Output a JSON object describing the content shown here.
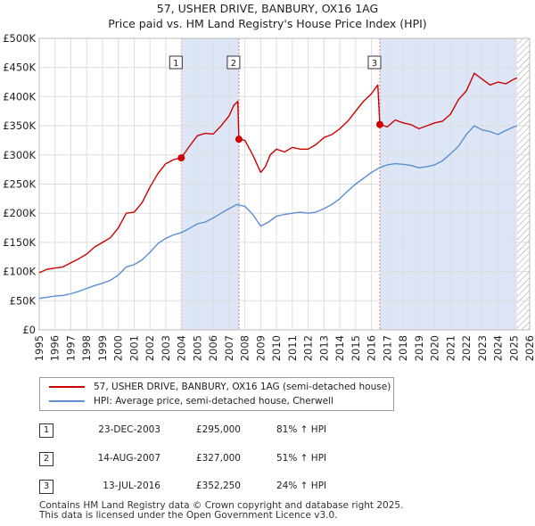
{
  "chart_data": {
    "type": "line",
    "title": "57, USHER DRIVE, BANBURY, OX16 1AG",
    "subtitle": "Price paid vs. HM Land Registry's House Price Index (HPI)",
    "xlim": [
      1995,
      2026
    ],
    "ylim": [
      0,
      500000
    ],
    "x_ticks": [
      "1995",
      "1996",
      "1997",
      "1998",
      "1999",
      "2000",
      "2001",
      "2002",
      "2003",
      "2004",
      "2005",
      "2006",
      "2007",
      "2008",
      "2009",
      "2010",
      "2011",
      "2012",
      "2013",
      "2014",
      "2015",
      "2016",
      "2017",
      "2018",
      "2019",
      "2020",
      "2021",
      "2022",
      "2023",
      "2024",
      "2025",
      "2026"
    ],
    "y_ticks": [
      {
        "value": 0,
        "label": "£0"
      },
      {
        "value": 50000,
        "label": "£50K"
      },
      {
        "value": 100000,
        "label": "£100K"
      },
      {
        "value": 150000,
        "label": "£150K"
      },
      {
        "value": 200000,
        "label": "£200K"
      },
      {
        "value": 250000,
        "label": "£250K"
      },
      {
        "value": 300000,
        "label": "£300K"
      },
      {
        "value": 350000,
        "label": "£350K"
      },
      {
        "value": 400000,
        "label": "£400K"
      },
      {
        "value": 450000,
        "label": "£450K"
      },
      {
        "value": 500000,
        "label": "£500K"
      }
    ],
    "grid": true,
    "shaded_ranges": [
      [
        2003.98,
        2007.62
      ],
      [
        2016.53,
        2025.2
      ]
    ],
    "hatched_range": [
      2025.2,
      2026
    ],
    "series": [
      {
        "name": "57, USHER DRIVE, BANBURY, OX16 1AG (semi-detached house)",
        "color": "#cc0000",
        "x": [
          1995.0,
          1995.5,
          1996.0,
          1996.5,
          1997.0,
          1997.5,
          1998.0,
          1998.5,
          1999.0,
          1999.5,
          2000.0,
          2000.5,
          2001.0,
          2001.5,
          2002.0,
          2002.5,
          2003.0,
          2003.5,
          2003.98,
          2004.5,
          2005.0,
          2005.5,
          2006.0,
          2006.5,
          2007.0,
          2007.3,
          2007.55,
          2007.62,
          2008.0,
          2008.5,
          2009.0,
          2009.3,
          2009.6,
          2010.0,
          2010.5,
          2011.0,
          2011.5,
          2012.0,
          2012.5,
          2013.0,
          2013.5,
          2014.0,
          2014.5,
          2015.0,
          2015.5,
          2016.0,
          2016.4,
          2016.53,
          2016.8,
          2017.0,
          2017.5,
          2018.0,
          2018.5,
          2019.0,
          2019.5,
          2020.0,
          2020.5,
          2021.0,
          2021.5,
          2022.0,
          2022.5,
          2023.0,
          2023.5,
          2024.0,
          2024.5,
          2025.0,
          2025.2
        ],
        "y": [
          98000,
          104000,
          106000,
          108000,
          115000,
          122000,
          130000,
          142000,
          150000,
          158000,
          175000,
          200000,
          202000,
          218000,
          245000,
          268000,
          285000,
          292000,
          295000,
          315000,
          333000,
          337000,
          336000,
          350000,
          367000,
          385000,
          392000,
          327000,
          325000,
          300000,
          270000,
          280000,
          300000,
          310000,
          305000,
          313000,
          310000,
          310000,
          318000,
          330000,
          335000,
          345000,
          358000,
          375000,
          392000,
          405000,
          420000,
          352250,
          350000,
          348000,
          360000,
          355000,
          352000,
          345000,
          350000,
          355000,
          358000,
          370000,
          395000,
          410000,
          440000,
          430000,
          420000,
          425000,
          422000,
          430000,
          432000
        ]
      },
      {
        "name": "HPI: Average price, semi-detached house, Cherwell",
        "color": "#5b8fd0",
        "x": [
          1995.0,
          1995.5,
          1996.0,
          1996.5,
          1997.0,
          1997.5,
          1998.0,
          1998.5,
          1999.0,
          1999.5,
          2000.0,
          2000.5,
          2001.0,
          2001.5,
          2002.0,
          2002.5,
          2003.0,
          2003.5,
          2004.0,
          2004.5,
          2005.0,
          2005.5,
          2006.0,
          2006.5,
          2007.0,
          2007.5,
          2008.0,
          2008.5,
          2009.0,
          2009.5,
          2010.0,
          2010.5,
          2011.0,
          2011.5,
          2012.0,
          2012.5,
          2013.0,
          2013.5,
          2014.0,
          2014.5,
          2015.0,
          2015.5,
          2016.0,
          2016.5,
          2017.0,
          2017.5,
          2018.0,
          2018.5,
          2019.0,
          2019.5,
          2020.0,
          2020.5,
          2021.0,
          2021.5,
          2022.0,
          2022.5,
          2023.0,
          2023.5,
          2024.0,
          2024.5,
          2025.0,
          2025.2
        ],
        "y": [
          54000,
          56000,
          58000,
          59000,
          62000,
          66000,
          71000,
          76000,
          80000,
          85000,
          94000,
          108000,
          112000,
          120000,
          133000,
          148000,
          157000,
          163000,
          167000,
          174000,
          182000,
          185000,
          192000,
          200000,
          208000,
          215000,
          212000,
          198000,
          178000,
          185000,
          195000,
          198000,
          200000,
          202000,
          200000,
          202000,
          208000,
          215000,
          225000,
          238000,
          250000,
          260000,
          270000,
          278000,
          283000,
          285000,
          284000,
          282000,
          278000,
          280000,
          283000,
          290000,
          302000,
          315000,
          335000,
          350000,
          343000,
          340000,
          335000,
          342000,
          348000,
          350000
        ]
      }
    ],
    "markers": [
      {
        "label": "1",
        "x": 2003.98,
        "y": 295000
      },
      {
        "label": "2",
        "x": 2007.62,
        "y": 327000
      },
      {
        "label": "3",
        "x": 2016.53,
        "y": 352250
      }
    ]
  },
  "legend": {
    "property_label": "57, USHER DRIVE, BANBURY, OX16 1AG (semi-detached house)",
    "hpi_label": "HPI: Average price, semi-detached house, Cherwell"
  },
  "transactions": [
    {
      "num": "1",
      "date": "23-DEC-2003",
      "price": "£295,000",
      "hpi": "81% ↑ HPI"
    },
    {
      "num": "2",
      "date": "14-AUG-2007",
      "price": "£327,000",
      "hpi": "51% ↑ HPI"
    },
    {
      "num": "3",
      "date": "13-JUL-2016",
      "price": "£352,250",
      "hpi": "24% ↑ HPI"
    }
  ],
  "footer": {
    "line1": "Contains HM Land Registry data © Crown copyright and database right 2025.",
    "line2": "This data is licensed under the Open Government Licence v3.0."
  },
  "colors": {
    "property": "#cc0000",
    "hpi": "#5b8fd0",
    "shade": "#dde6f7",
    "grid": "#dddddd"
  }
}
